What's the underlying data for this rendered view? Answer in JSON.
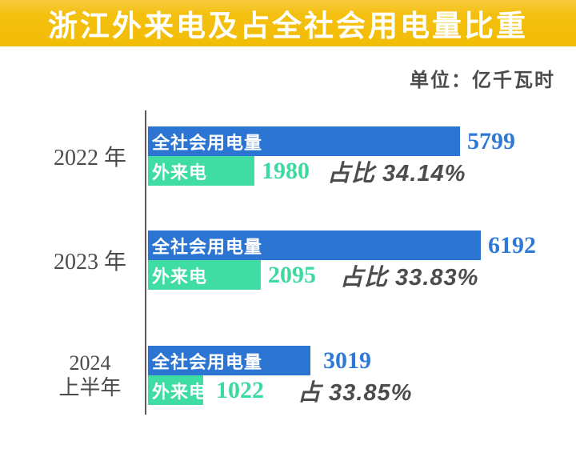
{
  "banner": {
    "title": "浙江外来电及占全社会用电量比重",
    "bg_color": "#F2BD06",
    "text_color": "#FFFFFF"
  },
  "unit_label": "单位：亿千瓦时",
  "colors": {
    "total_bar_blue": "#2C75D3",
    "external_bar_green": "#3FDCA4",
    "value_blue": "#2F79D6",
    "value_green": "#3CD9A0",
    "label_gray": "#4B4B4D",
    "axis_gray": "#59595B"
  },
  "chart_data": {
    "type": "bar",
    "orientation": "horizontal",
    "title": "浙江外来电及占全社会用电量比重",
    "unit": "亿千瓦时",
    "xlim": [
      0,
      6700
    ],
    "grid": false,
    "legend_position": "inside-bars",
    "series_labels": {
      "total": "全社会用电量",
      "external": "外来电"
    },
    "groups": [
      {
        "year_line1": "2022 年",
        "year_line2": "",
        "total": 5799,
        "external": 1980,
        "share_label": "占比 34.14%"
      },
      {
        "year_line1": "2023 年",
        "year_line2": "",
        "total": 6192,
        "external": 2095,
        "share_label": "占比 33.83%"
      },
      {
        "year_line1": "2024",
        "year_line2": "上半年",
        "total": 3019,
        "external": 1022,
        "share_label": "占 33.85%"
      }
    ]
  }
}
